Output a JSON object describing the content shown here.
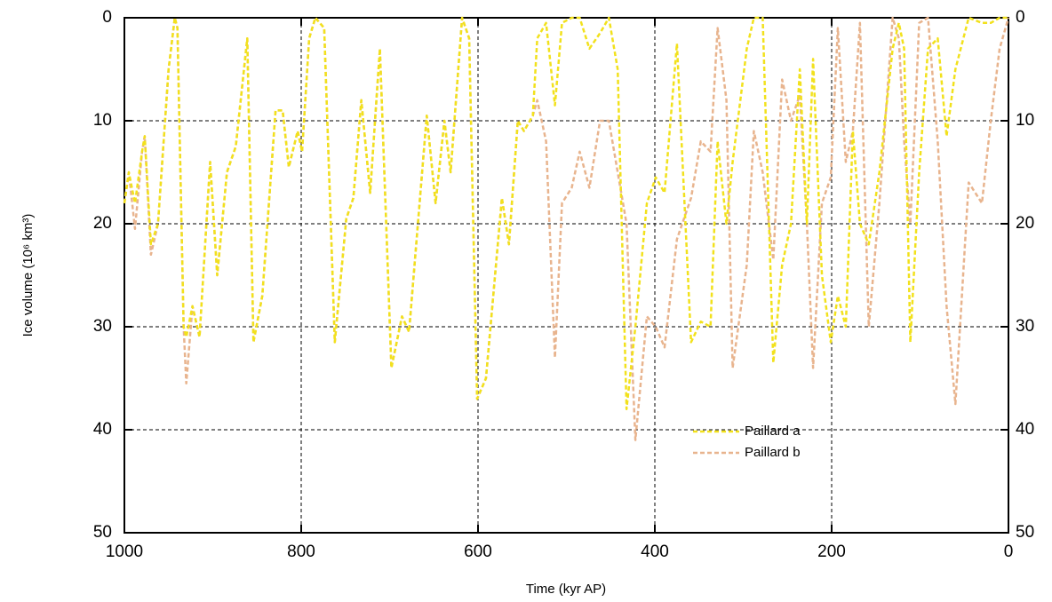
{
  "chart_data": {
    "type": "line",
    "xlabel": "Time (kyr AP)",
    "ylabel": "Ice volume (10⁶ km³)",
    "xlim": [
      1000,
      0
    ],
    "ylim": [
      50,
      0
    ],
    "xticks": [
      1000,
      800,
      600,
      400,
      200,
      0
    ],
    "yticks": [
      0,
      10,
      20,
      30,
      40,
      50
    ],
    "grid": true,
    "legend": "lower right",
    "x": [
      1000,
      995,
      988,
      980,
      977,
      970,
      962,
      950,
      943,
      940,
      933,
      930,
      923,
      915,
      903,
      895,
      884,
      874,
      861,
      854,
      844,
      829,
      821,
      814,
      804,
      799,
      791,
      784,
      774,
      762,
      749,
      741,
      732,
      722,
      711,
      698,
      686,
      678,
      658,
      648,
      638,
      631,
      618,
      610,
      601,
      591,
      573,
      565,
      555,
      548,
      538,
      533,
      523,
      513,
      505,
      494,
      485,
      474,
      462,
      452,
      442,
      432,
      422,
      409,
      399,
      389,
      375,
      359,
      348,
      337,
      329,
      319,
      312,
      296,
      288,
      278,
      266,
      256,
      246,
      236,
      228,
      221,
      211,
      201,
      193,
      184,
      176,
      168,
      158,
      146,
      131,
      124,
      118,
      111,
      101,
      91,
      80,
      70,
      60,
      45,
      30,
      20,
      10,
      0
    ],
    "series": [
      {
        "name": "Paillard a",
        "color": "#f2e11c",
        "values": [
          18,
          15,
          18,
          13,
          11.5,
          22,
          20,
          5,
          0,
          1,
          30,
          31,
          28,
          31,
          14,
          25,
          15,
          12.5,
          2,
          31.5,
          27,
          9,
          9,
          14.5,
          11,
          13,
          2,
          0,
          1,
          31.5,
          19.5,
          17.5,
          8,
          17,
          3,
          34,
          29,
          30.5,
          9.5,
          18,
          10,
          15,
          0,
          2,
          37,
          35,
          17.5,
          22,
          10,
          11,
          9.5,
          2,
          0.5,
          8.5,
          0.5,
          0,
          0,
          3,
          1.5,
          0,
          5,
          38,
          30,
          18,
          15.5,
          17,
          2.5,
          31.5,
          29.5,
          30,
          12,
          20,
          14,
          3,
          0,
          0,
          33.5,
          24,
          20,
          5,
          20,
          4,
          25,
          31.5,
          27,
          30,
          11,
          20,
          22,
          15,
          3,
          0.5,
          3,
          31.5,
          15,
          3,
          2,
          11.5,
          5,
          0,
          0.5,
          0.5,
          0,
          0
        ]
      },
      {
        "name": "Paillard b",
        "color": "#e8b48e",
        "values": [
          18,
          15,
          20.5,
          13,
          11.5,
          23,
          20,
          5,
          0,
          1,
          30,
          35.5,
          28,
          31,
          14,
          25,
          15,
          12.5,
          2,
          31.5,
          27,
          9,
          9,
          14.5,
          11,
          13,
          2,
          0,
          1,
          31.5,
          19.5,
          17.5,
          8,
          17,
          3,
          34,
          29,
          30.5,
          9.5,
          18,
          10,
          15,
          0,
          2,
          37,
          35,
          17.5,
          22,
          10,
          11,
          9.5,
          8,
          12,
          33,
          18,
          16.5,
          13,
          16.5,
          10,
          10,
          15,
          20,
          41,
          29,
          30,
          32,
          21.5,
          17.5,
          12,
          13,
          1,
          8,
          34,
          24,
          11,
          15,
          23.5,
          6,
          10,
          7.5,
          20,
          34,
          18,
          15.5,
          1,
          14,
          11,
          0.5,
          30,
          18,
          0,
          2,
          12,
          20,
          0.5,
          0,
          12,
          28,
          37.5,
          16,
          18,
          10,
          3,
          0
        ]
      }
    ]
  }
}
